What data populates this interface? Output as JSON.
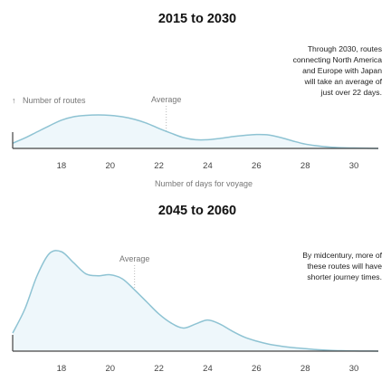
{
  "chart_data": [
    {
      "type": "area",
      "title": "2015 to 2030",
      "xlabel": "Number of days for voyage",
      "ylabel": "Number of routes",
      "xlim": [
        16,
        31
      ],
      "ylim": [
        0,
        1
      ],
      "x_ticks": [
        "18",
        "20",
        "22",
        "24",
        "26",
        "28",
        "30"
      ],
      "average_label": "Average",
      "average_x": 22.3,
      "annotation": [
        "Through 2030, routes",
        "connecting North America",
        "and Europe with Japan",
        "will take an average of",
        "just over 22 days."
      ],
      "series": [
        {
          "x": [
            16.0,
            16.5,
            17.0,
            17.5,
            18.0,
            18.5,
            19.0,
            19.5,
            20.0,
            20.5,
            21.0,
            21.5,
            22.0,
            22.5,
            23.0,
            23.5,
            24.0,
            24.5,
            25.0,
            25.5,
            26.0,
            26.5,
            27.0,
            27.5,
            28.0,
            28.5,
            29.0,
            29.5,
            30.0,
            30.5,
            31.0
          ],
          "values": [
            0.12,
            0.24,
            0.38,
            0.52,
            0.65,
            0.73,
            0.76,
            0.77,
            0.76,
            0.73,
            0.67,
            0.58,
            0.46,
            0.35,
            0.25,
            0.2,
            0.2,
            0.23,
            0.27,
            0.3,
            0.32,
            0.31,
            0.25,
            0.17,
            0.1,
            0.06,
            0.03,
            0.015,
            0.01,
            0.005,
            0.0
          ]
        }
      ]
    },
    {
      "type": "area",
      "title": "2045 to 2060",
      "xlim": [
        16,
        31
      ],
      "ylim": [
        0,
        1
      ],
      "x_ticks": [
        "18",
        "20",
        "22",
        "24",
        "26",
        "28",
        "30"
      ],
      "average_label": "Average",
      "average_x": 21.0,
      "annotation": [
        "By midcentury, more of",
        "these routes will have",
        "shorter journey times."
      ],
      "series": [
        {
          "x": [
            16.0,
            16.5,
            17.0,
            17.5,
            18.0,
            18.5,
            19.0,
            19.5,
            20.0,
            20.5,
            21.0,
            21.5,
            22.0,
            22.5,
            23.0,
            23.5,
            24.0,
            24.5,
            25.0,
            25.5,
            26.0,
            26.5,
            27.0,
            27.5,
            28.0,
            28.5,
            29.0,
            29.5,
            30.0,
            30.5,
            31.0
          ],
          "values": [
            0.18,
            0.42,
            0.75,
            0.97,
            0.99,
            0.88,
            0.77,
            0.75,
            0.76,
            0.72,
            0.61,
            0.49,
            0.37,
            0.28,
            0.23,
            0.27,
            0.31,
            0.27,
            0.2,
            0.14,
            0.1,
            0.07,
            0.05,
            0.035,
            0.025,
            0.015,
            0.008,
            0.004,
            0.002,
            0.001,
            0.0
          ]
        }
      ]
    }
  ]
}
